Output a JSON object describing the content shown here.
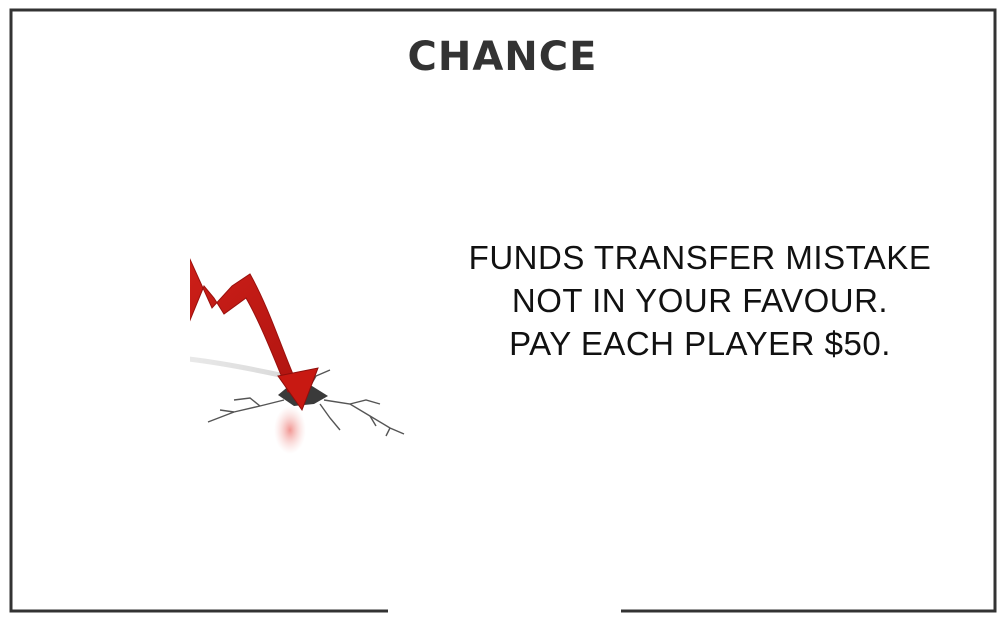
{
  "card": {
    "title": "CHANCE",
    "message_lines": [
      "FUNDS TRANSFER MISTAKE",
      "NOT IN YOUR FAVOUR.",
      "PAY EACH PLAYER $50."
    ]
  },
  "illustration": {
    "icon": "falling-arrow-crack-icon",
    "arrow_color": "#cc1a14"
  },
  "colors": {
    "border": "#333333",
    "title": "#333333",
    "text": "#111111"
  }
}
